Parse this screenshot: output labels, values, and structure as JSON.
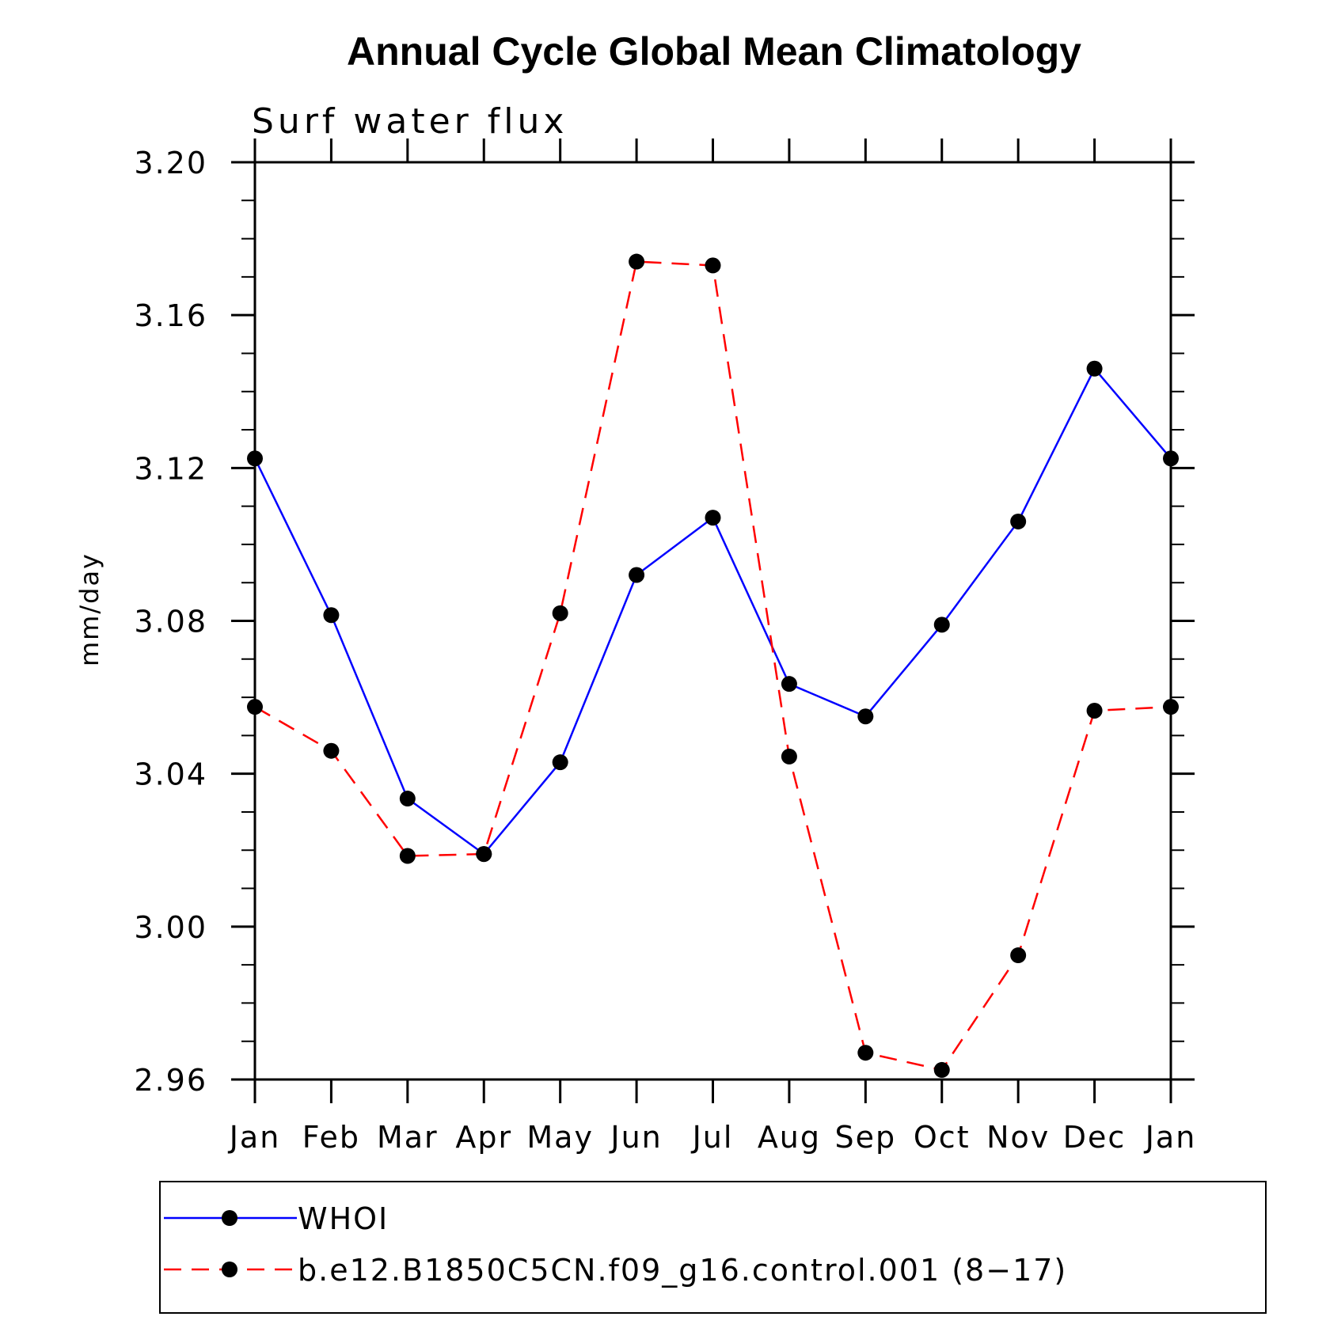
{
  "chart_data": {
    "type": "line",
    "title": "Annual Cycle Global Mean Climatology",
    "subtitle": "Surf water flux",
    "xlabel": "",
    "ylabel": "mm/day",
    "ylim": [
      2.96,
      3.2
    ],
    "yticks": [
      "3.20",
      "3.16",
      "3.12",
      "3.08",
      "3.04",
      "3.00",
      "2.96"
    ],
    "ytick_values": [
      3.2,
      3.16,
      3.12,
      3.08,
      3.04,
      3.0,
      2.96
    ],
    "categories": [
      "Jan",
      "Feb",
      "Mar",
      "Apr",
      "May",
      "Jun",
      "Jul",
      "Aug",
      "Sep",
      "Oct",
      "Nov",
      "Dec",
      "Jan"
    ],
    "grid": false,
    "legend_position": "bottom",
    "series": [
      {
        "name": "WHOI",
        "color": "#0000ff",
        "dash": "solid",
        "values": [
          3.1225,
          3.0815,
          3.0335,
          3.019,
          3.043,
          3.092,
          3.107,
          3.0635,
          3.055,
          3.079,
          3.106,
          3.146,
          3.1225
        ]
      },
      {
        "name": "b.e12.B1850C5CN.f09_g16.control.001 (8−17)",
        "color": "#ff0000",
        "dash": "dashed",
        "values": [
          3.0575,
          3.046,
          3.0185,
          3.019,
          3.082,
          3.174,
          3.173,
          3.0445,
          2.967,
          2.9625,
          2.9925,
          3.0565,
          3.0575
        ]
      }
    ]
  }
}
